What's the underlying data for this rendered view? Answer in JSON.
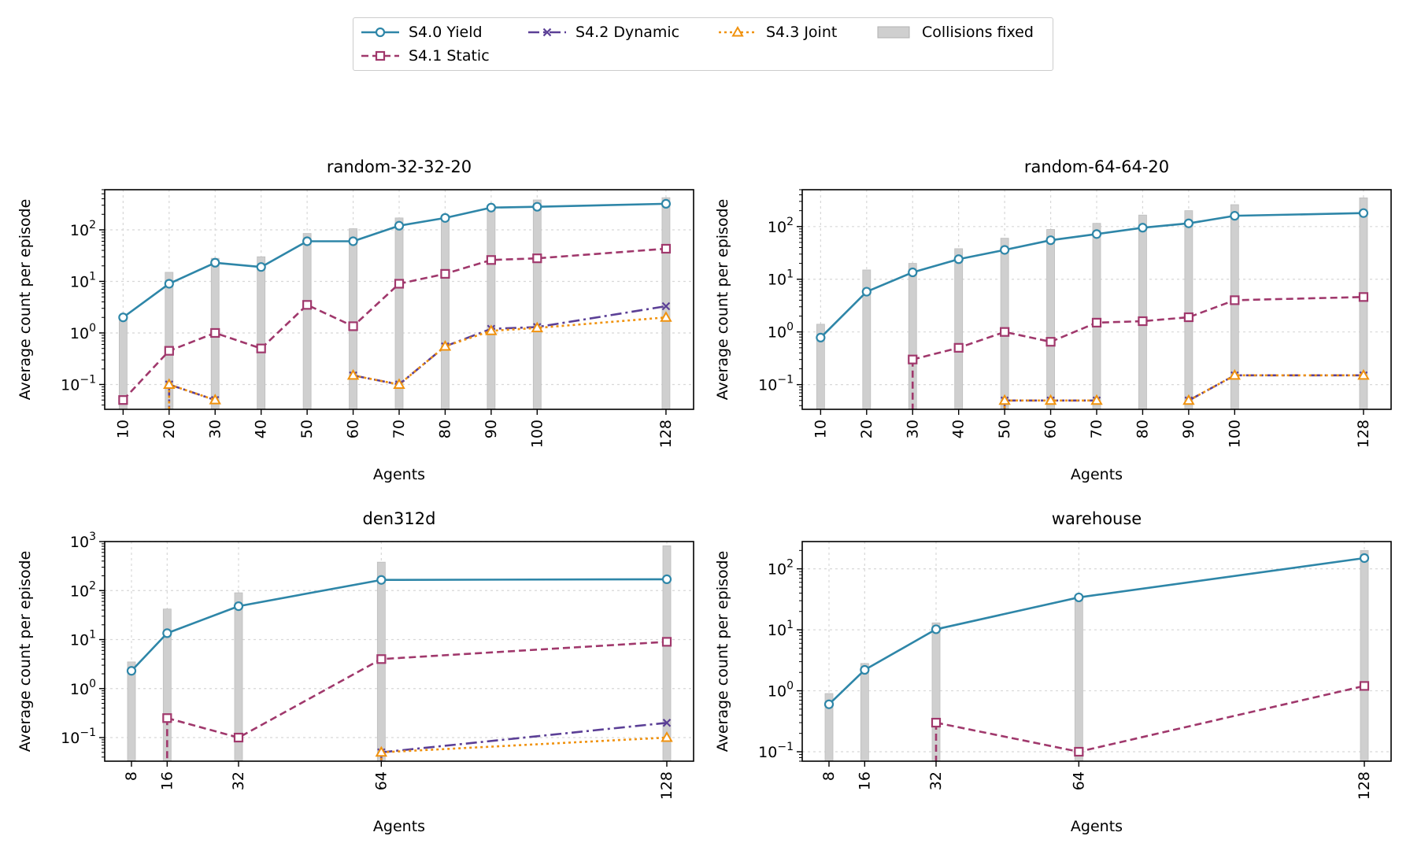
{
  "colors": {
    "yield": "#2e86a8",
    "static": "#a0386c",
    "dynamic": "#5b3f96",
    "joint": "#f0920e",
    "collisions": "#cfcfcf",
    "grid": "#d8d8d8"
  },
  "legend": {
    "entries": [
      {
        "label": "S4.0 Yield",
        "series": "yield"
      },
      {
        "label": "S4.2 Dynamic",
        "series": "dynamic"
      },
      {
        "label": "S4.3 Joint",
        "series": "joint"
      },
      {
        "label": "Collisions fixed",
        "series": "collisions"
      },
      {
        "label": "S4.1 Static",
        "series": "static"
      }
    ]
  },
  "chart_data": [
    {
      "type": "line",
      "title": "random-32-32-20",
      "xlabel": "Agents",
      "ylabel": "Average count per episode",
      "yscale": "log",
      "ylim": [
        0.033,
        600
      ],
      "xlim": [
        6,
        134
      ],
      "x": [
        10,
        20,
        30,
        40,
        50,
        60,
        70,
        80,
        90,
        100,
        128
      ],
      "xticks": [
        "10",
        "20",
        "30",
        "40",
        "50",
        "60",
        "70",
        "80",
        "90",
        "100",
        "128"
      ],
      "yticks": [
        0.1,
        1,
        10,
        100
      ],
      "series": [
        {
          "name": "S4.0 Yield",
          "key": "yield",
          "values": [
            2,
            9,
            23,
            19,
            60,
            60,
            120,
            170,
            270,
            280,
            320
          ]
        },
        {
          "name": "S4.1 Static",
          "key": "static",
          "values": [
            0.05,
            0.45,
            1.0,
            0.5,
            3.5,
            1.35,
            9,
            14,
            26,
            28,
            43
          ]
        },
        {
          "name": "S4.2 Dynamic",
          "key": "dynamic",
          "values": [
            null,
            0.1,
            0.05,
            null,
            null,
            0.15,
            0.1,
            0.55,
            1.2,
            1.3,
            3.3
          ]
        },
        {
          "name": "S4.3 Joint",
          "key": "joint",
          "values": [
            null,
            0.1,
            0.05,
            null,
            null,
            0.15,
            0.1,
            0.55,
            1.1,
            1.25,
            2.0
          ]
        }
      ],
      "collisions_fixed": [
        2,
        15,
        28,
        30,
        85,
        105,
        170,
        190,
        290,
        380,
        420
      ]
    },
    {
      "type": "line",
      "title": "random-64-64-20",
      "xlabel": "Agents",
      "ylabel": "Average count per episode",
      "yscale": "log",
      "ylim": [
        0.034,
        500
      ],
      "xlim": [
        6,
        134
      ],
      "x": [
        10,
        20,
        30,
        40,
        50,
        60,
        70,
        80,
        90,
        100,
        128
      ],
      "xticks": [
        "10",
        "20",
        "30",
        "40",
        "50",
        "60",
        "70",
        "80",
        "90",
        "100",
        "128"
      ],
      "yticks": [
        0.1,
        1,
        10,
        100
      ],
      "series": [
        {
          "name": "S4.0 Yield",
          "key": "yield",
          "values": [
            0.78,
            5.8,
            13.5,
            24,
            36,
            55,
            72,
            95,
            115,
            160,
            180
          ]
        },
        {
          "name": "S4.1 Static",
          "key": "static",
          "values": [
            null,
            null,
            0.3,
            0.5,
            1.0,
            0.65,
            1.5,
            1.6,
            1.9,
            4.0,
            4.6
          ]
        },
        {
          "name": "S4.2 Dynamic",
          "key": "dynamic",
          "values": [
            null,
            null,
            null,
            null,
            0.05,
            0.05,
            0.05,
            null,
            0.05,
            0.15,
            0.15
          ]
        },
        {
          "name": "S4.3 Joint",
          "key": "joint",
          "values": [
            null,
            null,
            null,
            null,
            0.05,
            0.05,
            0.05,
            null,
            0.05,
            0.15,
            0.15
          ]
        }
      ],
      "collisions_fixed": [
        1.4,
        15,
        20,
        38,
        60,
        88,
        115,
        165,
        200,
        260,
        350
      ]
    },
    {
      "type": "line",
      "title": "den312d",
      "xlabel": "Agents",
      "ylabel": "Average count per episode",
      "yscale": "log",
      "ylim": [
        0.033,
        1000
      ],
      "xlim": [
        2,
        134
      ],
      "x": [
        8,
        16,
        32,
        64,
        128
      ],
      "xticks": [
        "8",
        "16",
        "32",
        "64",
        "128"
      ],
      "yticks": [
        0.1,
        1,
        10,
        100,
        1000
      ],
      "series": [
        {
          "name": "S4.0 Yield",
          "key": "yield",
          "values": [
            2.3,
            13.5,
            48,
            165,
            170
          ]
        },
        {
          "name": "S4.1 Static",
          "key": "static",
          "values": [
            null,
            0.25,
            0.1,
            4.0,
            9.0
          ]
        },
        {
          "name": "S4.2 Dynamic",
          "key": "dynamic",
          "values": [
            null,
            null,
            null,
            0.05,
            0.2
          ]
        },
        {
          "name": "S4.3 Joint",
          "key": "joint",
          "values": [
            null,
            null,
            null,
            0.05,
            0.1
          ]
        }
      ],
      "collisions_fixed": [
        3.5,
        42,
        90,
        380,
        820
      ]
    },
    {
      "type": "line",
      "title": "warehouse",
      "xlabel": "Agents",
      "ylabel": "Average count per episode",
      "yscale": "log",
      "ylim": [
        0.07,
        280
      ],
      "xlim": [
        2,
        134
      ],
      "x": [
        8,
        16,
        32,
        64,
        128
      ],
      "xticks": [
        "8",
        "16",
        "32",
        "64",
        "128"
      ],
      "yticks": [
        0.1,
        1,
        10,
        100
      ],
      "series": [
        {
          "name": "S4.0 Yield",
          "key": "yield",
          "values": [
            0.6,
            2.2,
            10.2,
            34,
            150
          ]
        },
        {
          "name": "S4.1 Static",
          "key": "static",
          "values": [
            null,
            null,
            0.3,
            0.1,
            1.2
          ]
        },
        {
          "name": "S4.2 Dynamic",
          "key": "dynamic",
          "values": [
            null,
            null,
            null,
            null,
            null
          ]
        },
        {
          "name": "S4.3 Joint",
          "key": "joint",
          "values": [
            null,
            null,
            null,
            null,
            null
          ]
        }
      ],
      "collisions_fixed": [
        0.9,
        2.8,
        13,
        36,
        200
      ]
    }
  ]
}
